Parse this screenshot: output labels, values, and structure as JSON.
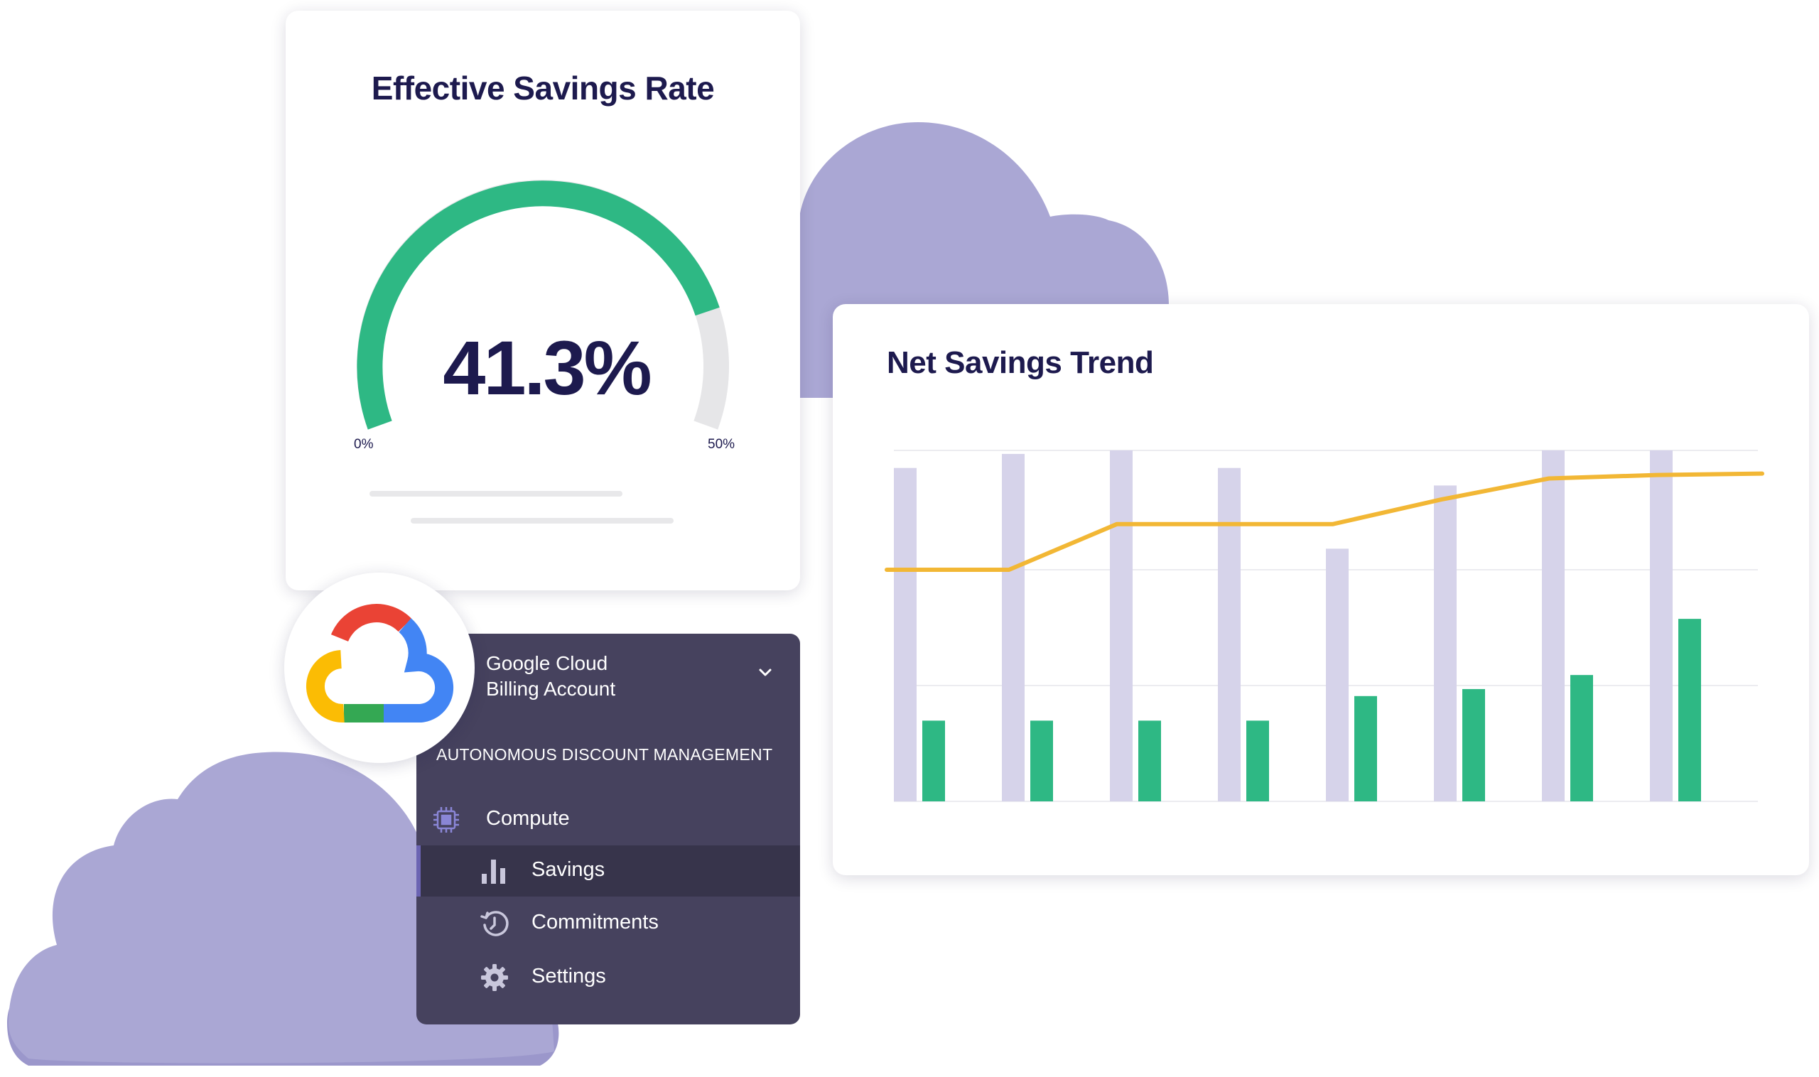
{
  "colors": {
    "cloud": "#aaa7d4",
    "cloud_shadow": "#9b97cb",
    "navy": "#1d1a4e",
    "green": "#2eb884",
    "gauge_track": "#e6e6e8",
    "bar_light": "#d6d3ea",
    "line_yellow": "#f2b735",
    "menu_bg": "#46425e",
    "menu_active_bg": "#37344b"
  },
  "gauge": {
    "title": "Effective Savings Rate",
    "value_text": "41.3%",
    "value": 41.3,
    "min_label": "0%",
    "max_label": "50%",
    "min": 0,
    "max": 50
  },
  "chart": {
    "title": "Net Savings Trend"
  },
  "chart_data": {
    "type": "bar",
    "title": "Net Savings Trend",
    "categories": [
      "",
      "",
      "",
      "",
      "",
      "",
      "",
      ""
    ],
    "ylim": [
      0,
      100
    ],
    "grid": true,
    "series": [
      {
        "kind": "bar",
        "color": "#d6d3ea",
        "values": [
          95,
          99,
          100,
          95,
          72,
          90,
          100,
          100
        ]
      },
      {
        "kind": "bar",
        "color": "#2eb884",
        "values": [
          23,
          23,
          23,
          23,
          30,
          32,
          36,
          52
        ]
      },
      {
        "kind": "line",
        "color": "#f2b735",
        "values": [
          66,
          66,
          79,
          79,
          79,
          86,
          92,
          93
        ]
      }
    ]
  },
  "menu": {
    "account_line1": "Google Cloud",
    "account_line2": "Billing Account",
    "section_title": "AUTONOMOUS DISCOUNT MANAGEMENT",
    "items": [
      {
        "label": "Compute",
        "icon": "chip-icon"
      },
      {
        "label": "Savings",
        "icon": "bar-chart-icon",
        "active": true
      },
      {
        "label": "Commitments",
        "icon": "history-icon"
      },
      {
        "label": "Settings",
        "icon": "gear-icon"
      }
    ]
  },
  "badge": {
    "icon": "google-cloud-logo-icon"
  }
}
